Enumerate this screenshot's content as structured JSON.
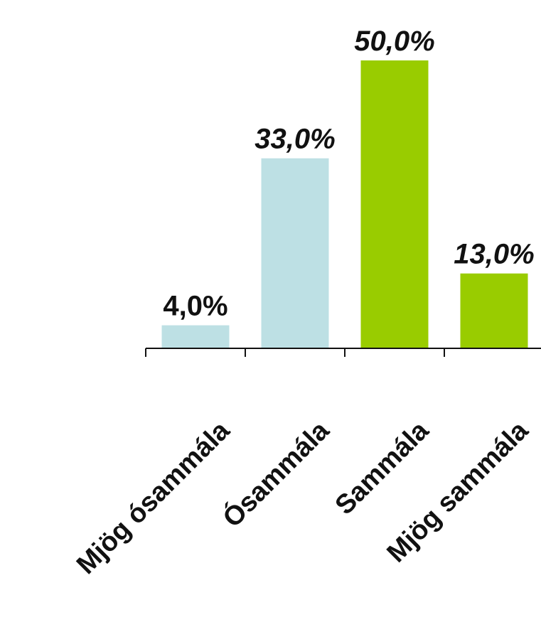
{
  "chart_data": {
    "type": "bar",
    "categories": [
      "Mjög ósammála",
      "Ósammála",
      "Sammála",
      "Mjög sammála"
    ],
    "values": [
      4.0,
      33.0,
      50.0,
      13.0
    ],
    "value_labels": [
      "4,0%",
      "33,0%",
      "50,0%",
      "13,0%"
    ],
    "bar_colors": [
      "#bde0e4",
      "#bde0e4",
      "#99cc00",
      "#99cc00"
    ],
    "title": "",
    "xlabel": "",
    "ylabel": "",
    "ylim": [
      0,
      55
    ],
    "grid": false,
    "legend": "none"
  }
}
